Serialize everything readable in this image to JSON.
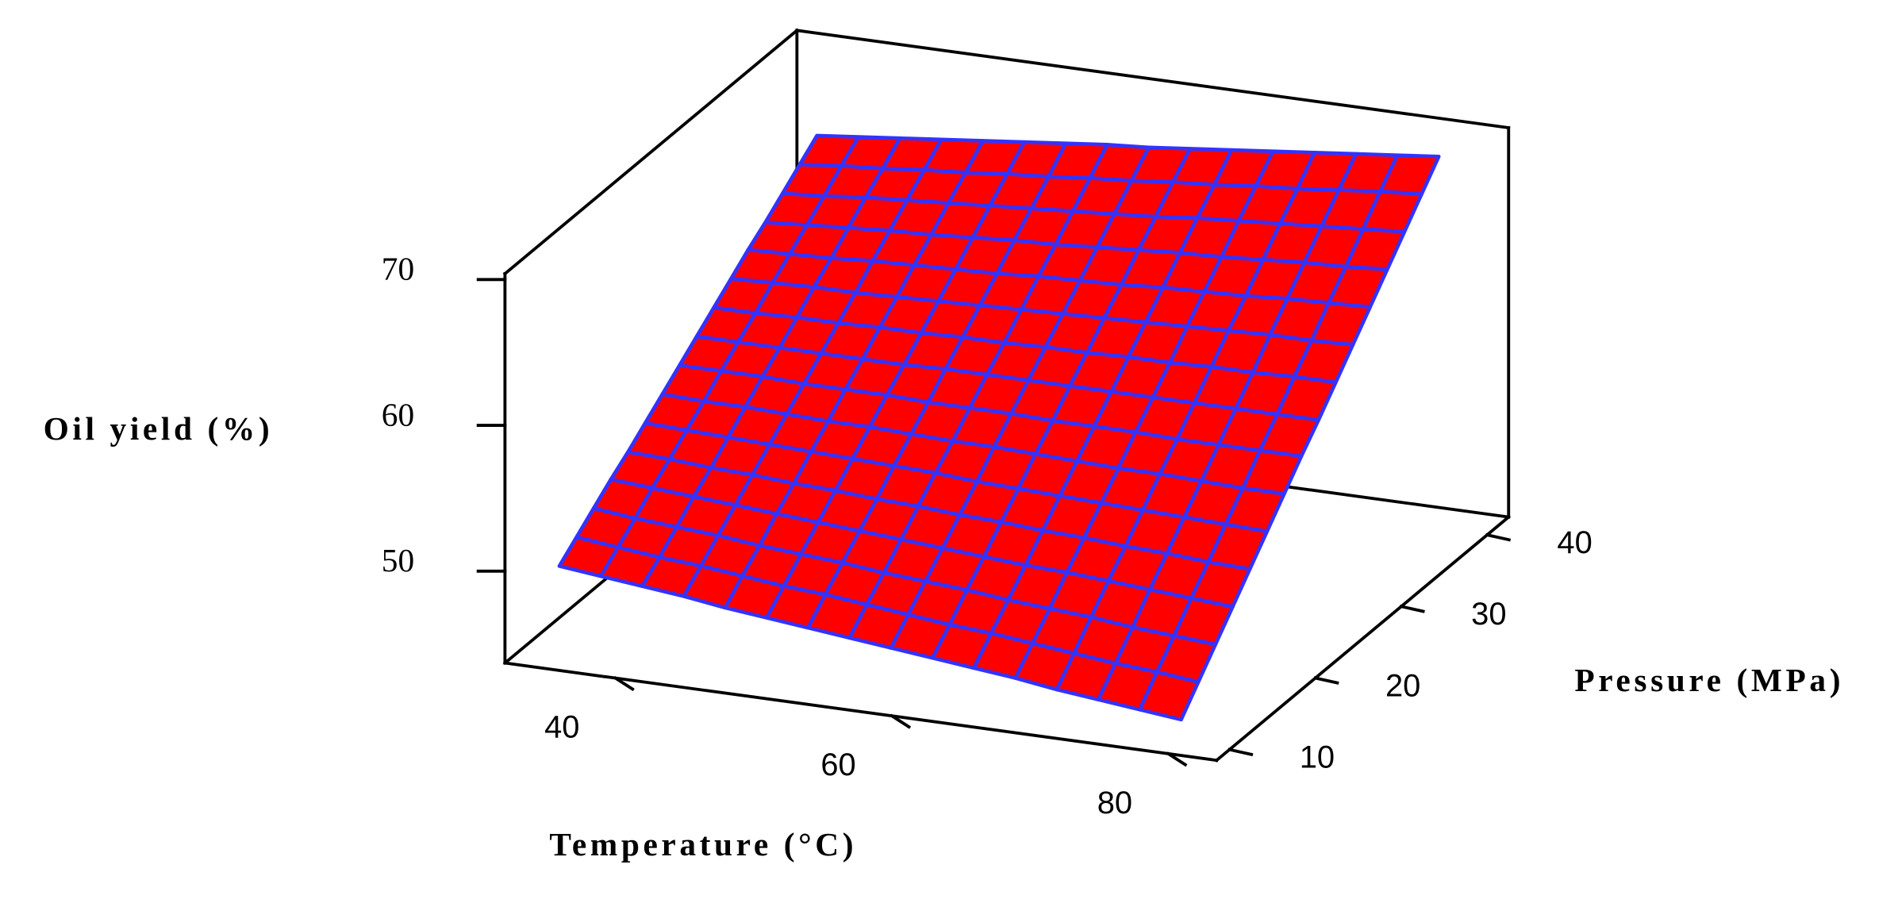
{
  "chart_data": {
    "type": "surface",
    "x_label": "Temperature (°C)",
    "y_label": "Pressure (MPa)",
    "z_label": "Oil yield (%)",
    "x": [
      35,
      38,
      41,
      44,
      47,
      50,
      53,
      56,
      59,
      62,
      65,
      68,
      71,
      74,
      77,
      80
    ],
    "y": [
      10,
      12,
      14,
      16,
      18,
      20,
      22,
      24,
      26,
      28,
      30,
      32,
      34,
      36,
      38,
      40
    ],
    "z": [
      [
        50.0,
        49.7,
        49.4,
        49.1,
        48.7,
        48.4,
        48.1,
        47.8,
        47.5,
        47.2,
        46.9,
        46.6,
        46.2,
        45.9,
        45.6,
        45.3
      ],
      [
        51.0,
        50.7,
        50.4,
        50.2,
        49.9,
        49.6,
        49.4,
        49.1,
        48.8,
        48.5,
        48.3,
        48.0,
        47.7,
        47.4,
        47.2,
        46.9
      ],
      [
        52.0,
        51.7,
        51.5,
        51.3,
        51.0,
        50.8,
        50.6,
        50.3,
        50.1,
        49.9,
        49.6,
        49.4,
        49.2,
        48.9,
        48.7,
        48.5
      ],
      [
        53.0,
        52.8,
        52.6,
        52.4,
        52.2,
        52.0,
        51.8,
        51.6,
        51.4,
        51.2,
        51.0,
        50.9,
        50.7,
        50.5,
        50.3,
        50.1
      ],
      [
        53.9,
        53.8,
        53.6,
        53.5,
        53.3,
        53.2,
        53.0,
        52.9,
        52.7,
        52.6,
        52.4,
        52.3,
        52.1,
        52.0,
        51.8,
        51.7
      ],
      [
        54.9,
        54.8,
        54.7,
        54.6,
        54.5,
        54.4,
        54.3,
        54.2,
        54.0,
        53.9,
        53.8,
        53.7,
        53.6,
        53.5,
        53.4,
        53.3
      ],
      [
        55.9,
        55.8,
        55.8,
        55.7,
        55.6,
        55.6,
        55.5,
        55.4,
        55.4,
        55.3,
        55.2,
        55.1,
        55.1,
        55.0,
        54.9,
        54.9
      ],
      [
        56.9,
        56.9,
        56.9,
        56.8,
        56.8,
        56.8,
        56.7,
        56.7,
        56.7,
        56.6,
        56.6,
        56.6,
        56.5,
        56.5,
        56.5,
        56.5
      ],
      [
        57.9,
        57.9,
        57.9,
        57.9,
        57.9,
        57.9,
        58.0,
        58.0,
        58.0,
        58.0,
        58.0,
        58.0,
        58.0,
        58.0,
        58.0,
        58.0
      ],
      [
        58.9,
        58.9,
        59.0,
        59.0,
        59.1,
        59.1,
        59.2,
        59.2,
        59.3,
        59.3,
        59.4,
        59.4,
        59.5,
        59.5,
        59.6,
        59.6
      ],
      [
        59.9,
        60.0,
        60.1,
        60.1,
        60.2,
        60.3,
        60.4,
        60.5,
        60.6,
        60.7,
        60.8,
        60.9,
        61.0,
        61.1,
        61.1,
        61.2
      ],
      [
        60.9,
        61.0,
        61.1,
        61.3,
        61.4,
        61.5,
        61.6,
        61.8,
        61.9,
        62.0,
        62.2,
        62.3,
        62.4,
        62.6,
        62.7,
        62.8
      ],
      [
        61.8,
        62.0,
        62.2,
        62.4,
        62.5,
        62.7,
        62.9,
        63.0,
        63.2,
        63.4,
        63.6,
        63.7,
        63.9,
        64.1,
        64.2,
        64.4
      ],
      [
        62.8,
        63.0,
        63.3,
        63.5,
        63.7,
        63.9,
        64.1,
        64.3,
        64.5,
        64.7,
        65.0,
        65.2,
        65.4,
        65.6,
        65.8,
        66.0
      ],
      [
        63.8,
        64.1,
        64.3,
        64.6,
        64.8,
        65.1,
        65.3,
        65.6,
        65.8,
        66.1,
        66.3,
        66.6,
        66.8,
        67.1,
        67.4,
        67.6
      ],
      [
        64.8,
        65.1,
        65.4,
        65.7,
        66.0,
        66.3,
        66.6,
        66.9,
        67.1,
        67.4,
        67.7,
        68.0,
        68.3,
        68.6,
        68.9,
        69.2
      ]
    ],
    "xlim": [
      32,
      83.5
    ],
    "ylim": [
      8.5,
      42.5
    ],
    "zlim": [
      43.7,
      70.4
    ],
    "xticks": [
      40,
      60,
      80
    ],
    "yticks": [
      10,
      20,
      30,
      40
    ],
    "zticks": [
      50,
      60,
      70
    ],
    "color": "#ff0000",
    "line_color": "#3333ff"
  }
}
